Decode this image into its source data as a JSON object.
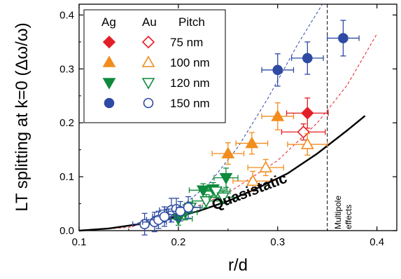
{
  "chart_data": {
    "type": "scatter",
    "xlabel": "r/d",
    "ylabel": "LT splitting at k=0 (Δω/ω)",
    "xlim": [
      0.1,
      0.42
    ],
    "ylim": [
      0.0,
      0.42
    ],
    "x_ticks": [
      "0.1",
      "0.2",
      "0.3",
      "0.4"
    ],
    "y_ticks": [
      "0.0",
      "0.1",
      "0.2",
      "0.3",
      "0.4"
    ],
    "grid": false,
    "legend": {
      "placement": "top-left",
      "headers": [
        "Ag",
        "Au",
        "Pitch"
      ],
      "rows": [
        "75 nm",
        "100 nm",
        "120 nm",
        "150 nm"
      ]
    },
    "colors": {
      "75 nm": "#e41e26",
      "100 nm": "#f28c1c",
      "120 nm": "#0e8a3c",
      "150 nm": "#2e4aa3"
    },
    "annotations": {
      "curve_label": "Quasistatic",
      "multipole_line1": "Multipole",
      "multipole_line2": "effects",
      "multipole_x": 0.35
    },
    "quasistatic_curve": {
      "x": [
        0.1,
        0.13,
        0.16,
        0.19,
        0.22,
        0.25,
        0.28,
        0.31,
        0.34,
        0.37,
        0.388
      ],
      "y": [
        0.0,
        0.004,
        0.012,
        0.022,
        0.036,
        0.055,
        0.079,
        0.106,
        0.143,
        0.186,
        0.213
      ]
    },
    "dashed_curves": [
      {
        "color_key": "150 nm",
        "x": [
          0.1,
          0.15,
          0.2,
          0.23,
          0.26,
          0.29,
          0.32,
          0.345
        ],
        "y": [
          0.0,
          0.008,
          0.04,
          0.085,
          0.155,
          0.245,
          0.345,
          0.425
        ]
      },
      {
        "color_key": "75 nm",
        "x": [
          0.1,
          0.15,
          0.2,
          0.25,
          0.3,
          0.34,
          0.37,
          0.4
        ],
        "y": [
          0.0,
          0.006,
          0.03,
          0.07,
          0.13,
          0.2,
          0.27,
          0.365
        ]
      }
    ],
    "series": [
      {
        "material": "Ag",
        "pitch": "75 nm",
        "marker": "diamond",
        "filled": true,
        "points": [
          {
            "x": 0.33,
            "y": 0.218,
            "xerr": 0.021,
            "yerr": 0.028
          }
        ]
      },
      {
        "material": "Au",
        "pitch": "75 nm",
        "marker": "diamond",
        "filled": false,
        "points": [
          {
            "x": 0.326,
            "y": 0.183,
            "xerr": 0.022,
            "yerr": 0.015
          }
        ]
      },
      {
        "material": "Ag",
        "pitch": "100 nm",
        "marker": "triangle-up",
        "filled": true,
        "points": [
          {
            "x": 0.25,
            "y": 0.143,
            "xerr": 0.016,
            "yerr": 0.02
          },
          {
            "x": 0.274,
            "y": 0.162,
            "xerr": 0.016,
            "yerr": 0.02
          },
          {
            "x": 0.3,
            "y": 0.212,
            "xerr": 0.016,
            "yerr": 0.025
          }
        ]
      },
      {
        "material": "Au",
        "pitch": "100 nm",
        "marker": "triangle-up",
        "filled": false,
        "points": [
          {
            "x": 0.275,
            "y": 0.092,
            "xerr": 0.02,
            "yerr": 0.018
          },
          {
            "x": 0.288,
            "y": 0.117,
            "xerr": 0.018,
            "yerr": 0.015
          },
          {
            "x": 0.33,
            "y": 0.16,
            "xerr": 0.02,
            "yerr": 0.02
          }
        ]
      },
      {
        "material": "Ag",
        "pitch": "120 nm",
        "marker": "triangle-down",
        "filled": true,
        "points": [
          {
            "x": 0.2,
            "y": 0.022,
            "xerr": 0.014,
            "yerr": 0.012
          },
          {
            "x": 0.207,
            "y": 0.034,
            "xerr": 0.012,
            "yerr": 0.014
          },
          {
            "x": 0.225,
            "y": 0.075,
            "xerr": 0.014,
            "yerr": 0.012
          },
          {
            "x": 0.235,
            "y": 0.077,
            "xerr": 0.014,
            "yerr": 0.012
          },
          {
            "x": 0.248,
            "y": 0.098,
            "xerr": 0.012,
            "yerr": 0.018
          }
        ]
      },
      {
        "material": "Au",
        "pitch": "120 nm",
        "marker": "triangle-down",
        "filled": false,
        "points": [
          {
            "x": 0.2,
            "y": 0.035,
            "xerr": 0.012,
            "yerr": 0.01
          },
          {
            "x": 0.212,
            "y": 0.043,
            "xerr": 0.012,
            "yerr": 0.01
          },
          {
            "x": 0.228,
            "y": 0.055,
            "xerr": 0.014,
            "yerr": 0.012
          },
          {
            "x": 0.238,
            "y": 0.073,
            "xerr": 0.014,
            "yerr": 0.012
          },
          {
            "x": 0.245,
            "y": 0.062,
            "xerr": 0.014,
            "yerr": 0.012
          }
        ]
      },
      {
        "material": "Ag",
        "pitch": "150 nm",
        "marker": "circle",
        "filled": true,
        "points": [
          {
            "x": 0.3,
            "y": 0.298,
            "xerr": 0.016,
            "yerr": 0.03
          },
          {
            "x": 0.33,
            "y": 0.32,
            "xerr": 0.016,
            "yerr": 0.03
          },
          {
            "x": 0.366,
            "y": 0.357,
            "xerr": 0.016,
            "yerr": 0.033
          }
        ]
      },
      {
        "material": "Au",
        "pitch": "150 nm",
        "marker": "circle",
        "filled": false,
        "points": [
          {
            "x": 0.166,
            "y": 0.012,
            "xerr": 0.012,
            "yerr": 0.02
          },
          {
            "x": 0.176,
            "y": 0.016,
            "xerr": 0.012,
            "yerr": 0.018
          },
          {
            "x": 0.18,
            "y": 0.02,
            "xerr": 0.012,
            "yerr": 0.016
          },
          {
            "x": 0.186,
            "y": 0.026,
            "xerr": 0.012,
            "yerr": 0.018
          },
          {
            "x": 0.193,
            "y": 0.038,
            "xerr": 0.012,
            "yerr": 0.022
          },
          {
            "x": 0.198,
            "y": 0.04,
            "xerr": 0.012,
            "yerr": 0.02
          },
          {
            "x": 0.202,
            "y": 0.036,
            "xerr": 0.012,
            "yerr": 0.018
          },
          {
            "x": 0.21,
            "y": 0.043,
            "xerr": 0.012,
            "yerr": 0.02
          }
        ]
      }
    ]
  }
}
